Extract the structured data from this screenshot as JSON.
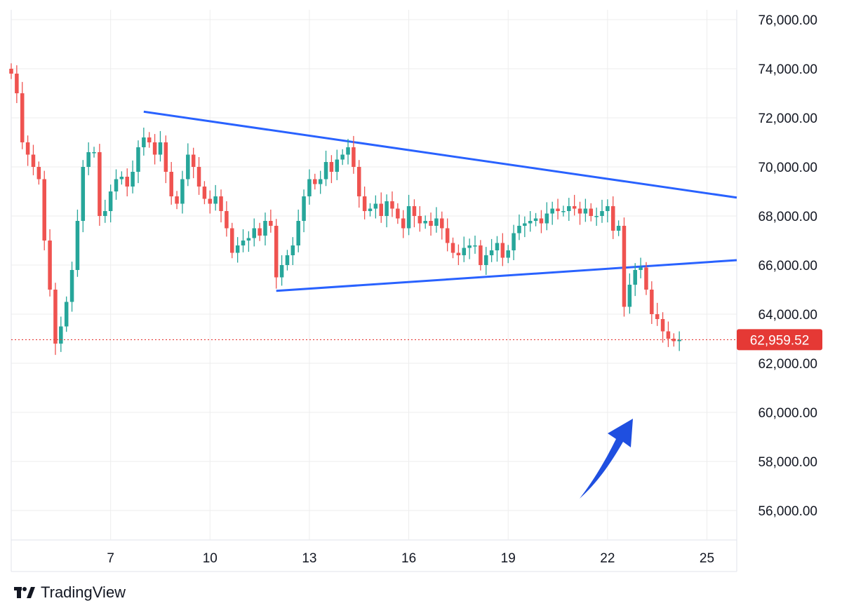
{
  "brand": {
    "name": "TradingView"
  },
  "colors": {
    "up": "#26a69a",
    "down": "#ef5350",
    "trendline": "#2962ff",
    "arrow": "#1f4fe0",
    "grid": "#ededed",
    "last_price": "#e53935"
  },
  "chart_data": {
    "type": "candlestick",
    "xlabel": "",
    "ylabel": "",
    "y_axis_position": "right",
    "grid": true,
    "ylim": [
      54800,
      76400
    ],
    "y_ticks": [
      {
        "value": 76000,
        "label": "76,000.00"
      },
      {
        "value": 74000,
        "label": "74,000.00"
      },
      {
        "value": 72000,
        "label": "72,000.00"
      },
      {
        "value": 70000,
        "label": "70,000.00"
      },
      {
        "value": 68000,
        "label": "68,000.00"
      },
      {
        "value": 66000,
        "label": "66,000.00"
      },
      {
        "value": 64000,
        "label": "64,000.00"
      },
      {
        "value": 62000,
        "label": "62,000.00"
      },
      {
        "value": 60000,
        "label": "60,000.00"
      },
      {
        "value": 58000,
        "label": "58,000.00"
      },
      {
        "value": 56000,
        "label": "56,000.00"
      }
    ],
    "x_ticks": [
      {
        "day": 7,
        "label": "7"
      },
      {
        "day": 10,
        "label": "10"
      },
      {
        "day": 13,
        "label": "13"
      },
      {
        "day": 16,
        "label": "16"
      },
      {
        "day": 19,
        "label": "19"
      },
      {
        "day": 22,
        "label": "22"
      },
      {
        "day": 25,
        "label": "25"
      }
    ],
    "xlim": [
      4.0,
      25.9
    ],
    "last_price": {
      "value": 62959.52,
      "label": "62,959.52"
    },
    "candles_per_day": 6,
    "first_candle_day": 4.0,
    "closes": [
      73800,
      73000,
      71000,
      70500,
      70000,
      69500,
      67000,
      65000,
      62800,
      63500,
      64500,
      65800,
      67800,
      70000,
      70600,
      70600,
      68000,
      68200,
      69000,
      69500,
      69600,
      69200,
      69800,
      70800,
      71200,
      71000,
      70500,
      71000,
      69800,
      68800,
      68500,
      69500,
      70500,
      70000,
      69200,
      68700,
      68500,
      68800,
      68200,
      67500,
      66500,
      66800,
      67000,
      67100,
      67500,
      67200,
      67800,
      67600,
      65500,
      66000,
      66400,
      66800,
      67800,
      68800,
      69500,
      69300,
      69500,
      70200,
      69800,
      70300,
      70500,
      70800,
      70000,
      68800,
      68200,
      68300,
      68500,
      68000,
      68600,
      68300,
      67900,
      67500,
      68400,
      68000,
      67700,
      67800,
      67600,
      67900,
      67500,
      66900,
      66500,
      66400,
      66700,
      66800,
      66800,
      66000,
      66400,
      66600,
      66900,
      66300,
      66600,
      67300,
      67600,
      67700,
      67800,
      67900,
      67700,
      68100,
      68300,
      68200,
      68200,
      68400,
      68300,
      68100,
      68300,
      68000,
      68000,
      68200,
      68400,
      67400,
      67600,
      64300,
      65200,
      65800,
      65900,
      65000,
      64000,
      63800,
      63300,
      63000,
      62900,
      62959.52
    ]
  }
}
